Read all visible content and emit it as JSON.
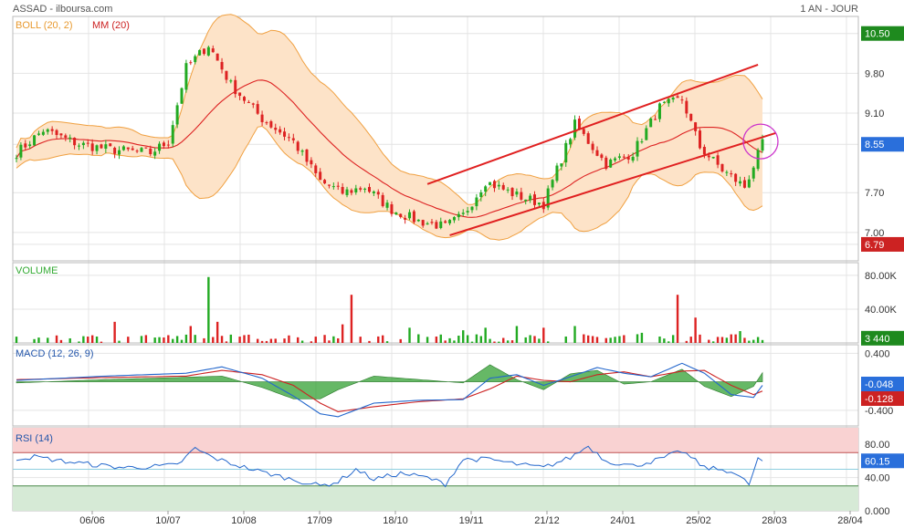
{
  "header": {
    "left": "ASSAD - ilboursa.com",
    "right": "1 AN - JOUR"
  },
  "colors": {
    "up": "#22aa22",
    "down": "#dd2222",
    "band_fill": "#fde3c8",
    "band_line": "#f0a040",
    "ma": "#dd2222",
    "macd": "#2266cc",
    "signal": "#cc2222",
    "hist": "#33a033",
    "rsi": "#2266cc",
    "panel_title": "#2255aa"
  },
  "chart_data": [
    {
      "type": "candlestick",
      "title": "BOLL (20, 2)",
      "subtitle": "MM (20)",
      "ylim": [
        6.5,
        10.8
      ],
      "y_ticks": [
        "10.50",
        "9.80",
        "9.10",
        "8.55",
        "7.70",
        "7.00",
        "6.79"
      ],
      "y_tick_values": [
        10.5,
        9.8,
        9.1,
        8.55,
        7.7,
        7.0,
        6.79
      ],
      "last_price": "8.55",
      "low_marker": "6.79",
      "high_marker": "10.50",
      "x_ticks": [
        "06/06",
        "10/07",
        "10/08",
        "17/09",
        "18/10",
        "19/11",
        "21/12",
        "24/01",
        "25/02",
        "28/03",
        "28/04"
      ],
      "keypoints": [
        [
          0,
          8.4
        ],
        [
          6,
          8.8
        ],
        [
          14,
          8.55
        ],
        [
          22,
          8.45
        ],
        [
          30,
          8.4
        ],
        [
          34,
          8.6
        ],
        [
          38,
          9.9
        ],
        [
          43,
          10.3
        ],
        [
          48,
          9.6
        ],
        [
          55,
          9.0
        ],
        [
          62,
          8.6
        ],
        [
          68,
          7.9
        ],
        [
          73,
          7.7
        ],
        [
          78,
          7.8
        ],
        [
          84,
          7.4
        ],
        [
          90,
          7.2
        ],
        [
          96,
          7.1
        ],
        [
          100,
          7.3
        ],
        [
          105,
          7.9
        ],
        [
          112,
          7.65
        ],
        [
          118,
          7.5
        ],
        [
          125,
          8.9
        ],
        [
          132,
          8.2
        ],
        [
          138,
          8.4
        ],
        [
          144,
          9.2
        ],
        [
          149,
          9.35
        ],
        [
          153,
          8.5
        ],
        [
          158,
          8.1
        ],
        [
          163,
          7.8
        ],
        [
          167,
          8.55
        ]
      ],
      "n_candles": 168,
      "trend_lines": [
        [
          [
            92,
            7.85
          ],
          [
            166,
            9.95
          ]
        ],
        [
          [
            97,
            6.95
          ],
          [
            170,
            8.75
          ]
        ]
      ]
    },
    {
      "type": "bar",
      "title": "VOLUME",
      "ylim": [
        0,
        95000
      ],
      "y_ticks": [
        "80.00K",
        "40.00K"
      ],
      "y_tick_values": [
        80000,
        40000
      ],
      "last_value": "3 440",
      "spikes": [
        [
          22,
          25000
        ],
        [
          39,
          20000
        ],
        [
          43,
          78000
        ],
        [
          45,
          25000
        ],
        [
          73,
          22000
        ],
        [
          75,
          57000
        ],
        [
          82,
          9000
        ],
        [
          88,
          18000
        ],
        [
          100,
          15000
        ],
        [
          105,
          18000
        ],
        [
          112,
          20000
        ],
        [
          118,
          18000
        ],
        [
          125,
          20000
        ],
        [
          140,
          12000
        ],
        [
          148,
          57000
        ],
        [
          152,
          30000
        ],
        [
          162,
          14000
        ]
      ]
    },
    {
      "type": "line",
      "title": "MACD (12, 26, 9)",
      "ylim": [
        -0.62,
        0.52
      ],
      "y_ticks": [
        "0.400",
        "-0.400"
      ],
      "y_tick_values": [
        0.4,
        -0.4
      ],
      "macd_last": "-0.048",
      "signal_last": "-0.128",
      "macd_keypoints": [
        [
          0,
          0.02
        ],
        [
          20,
          0.08
        ],
        [
          38,
          0.12
        ],
        [
          46,
          0.21
        ],
        [
          55,
          0.05
        ],
        [
          62,
          -0.2
        ],
        [
          68,
          -0.45
        ],
        [
          72,
          -0.49
        ],
        [
          80,
          -0.3
        ],
        [
          90,
          -0.26
        ],
        [
          100,
          -0.25
        ],
        [
          106,
          0.05
        ],
        [
          112,
          0.1
        ],
        [
          118,
          -0.05
        ],
        [
          124,
          0.07
        ],
        [
          130,
          0.2
        ],
        [
          136,
          0.12
        ],
        [
          142,
          0.07
        ],
        [
          149,
          0.26
        ],
        [
          154,
          0.12
        ],
        [
          160,
          -0.18
        ],
        [
          165,
          -0.22
        ],
        [
          167,
          -0.05
        ]
      ],
      "signal_keypoints": [
        [
          0,
          0.03
        ],
        [
          20,
          0.06
        ],
        [
          38,
          0.08
        ],
        [
          46,
          0.16
        ],
        [
          55,
          0.1
        ],
        [
          62,
          -0.05
        ],
        [
          68,
          -0.3
        ],
        [
          72,
          -0.42
        ],
        [
          80,
          -0.35
        ],
        [
          90,
          -0.28
        ],
        [
          100,
          -0.24
        ],
        [
          106,
          -0.1
        ],
        [
          112,
          0.08
        ],
        [
          118,
          0.02
        ],
        [
          124,
          0.0
        ],
        [
          130,
          0.1
        ],
        [
          136,
          0.14
        ],
        [
          142,
          0.07
        ],
        [
          149,
          0.15
        ],
        [
          154,
          0.16
        ],
        [
          160,
          -0.05
        ],
        [
          165,
          -0.18
        ],
        [
          167,
          -0.13
        ]
      ]
    },
    {
      "type": "line",
      "title": "RSI (14)",
      "ylim": [
        0,
        100
      ],
      "y_ticks": [
        "80.00",
        "40.00",
        "0.000"
      ],
      "y_tick_values": [
        80,
        40,
        0
      ],
      "last_value": "60.15",
      "overbought": 70,
      "oversold": 30,
      "keypoints": [
        [
          0,
          63
        ],
        [
          4,
          65
        ],
        [
          10,
          60
        ],
        [
          18,
          55
        ],
        [
          24,
          52
        ],
        [
          30,
          53
        ],
        [
          36,
          55
        ],
        [
          40,
          75
        ],
        [
          44,
          64
        ],
        [
          48,
          57
        ],
        [
          54,
          48
        ],
        [
          60,
          40
        ],
        [
          64,
          35
        ],
        [
          68,
          30
        ],
        [
          72,
          35
        ],
        [
          76,
          50
        ],
        [
          80,
          38
        ],
        [
          86,
          45
        ],
        [
          92,
          40
        ],
        [
          96,
          32
        ],
        [
          100,
          62
        ],
        [
          106,
          62
        ],
        [
          112,
          56
        ],
        [
          118,
          52
        ],
        [
          124,
          64
        ],
        [
          128,
          78
        ],
        [
          132,
          60
        ],
        [
          138,
          54
        ],
        [
          144,
          62
        ],
        [
          149,
          72
        ],
        [
          154,
          52
        ],
        [
          160,
          48
        ],
        [
          164,
          32
        ],
        [
          166,
          62
        ],
        [
          167,
          60
        ]
      ]
    }
  ]
}
